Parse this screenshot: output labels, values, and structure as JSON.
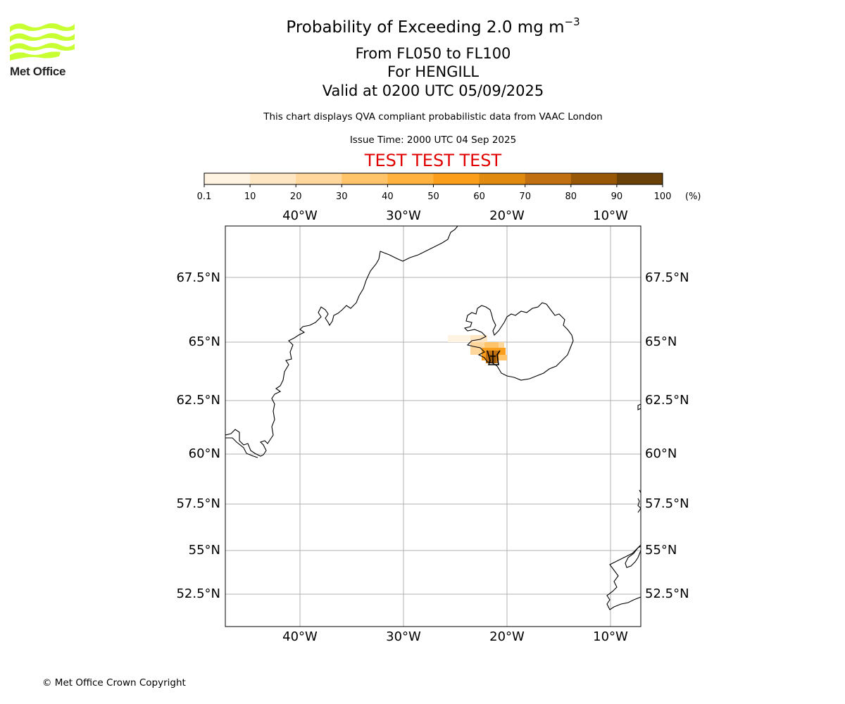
{
  "header": {
    "title_main": "Probability of Exceeding 2.0 mg m",
    "title_sup": "−3",
    "levels": "From FL050 to FL100",
    "volcano": "For HENGILL",
    "valid": "Valid at 0200 UTC 05/09/2025",
    "description": "This chart displays QVA compliant probabilistic data from VAAC London",
    "issue_time": "Issue Time: 2000 UTC 04 Sep 2025",
    "test_banner": "TEST TEST TEST"
  },
  "logo": {
    "text": "Met Office",
    "color": "#c8ff32"
  },
  "colorbar": {
    "ticks": [
      "0.1",
      "10",
      "20",
      "30",
      "40",
      "50",
      "60",
      "70",
      "80",
      "90",
      "100"
    ],
    "unit": "(%)",
    "colors": [
      "#fff4e1",
      "#ffe6c2",
      "#ffd69b",
      "#ffc46a",
      "#ffb23e",
      "#fa9e1c",
      "#e08a10",
      "#c07010",
      "#975707",
      "#6a4108"
    ]
  },
  "map": {
    "lon_labels": [
      "40°W",
      "30°W",
      "20°W",
      "10°W"
    ],
    "lat_labels": [
      "67.5°N",
      "65°N",
      "62.5°N",
      "60°N",
      "57.5°N",
      "55°N",
      "52.5°N"
    ],
    "gridline_color": "#b0b0b0"
  },
  "footer": {
    "copyright": "© Met Office Crown Copyright"
  }
}
